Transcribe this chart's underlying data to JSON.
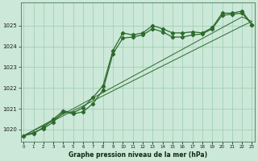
{
  "x": [
    0,
    1,
    2,
    3,
    4,
    5,
    6,
    7,
    8,
    9,
    10,
    11,
    12,
    13,
    14,
    15,
    16,
    17,
    18,
    19,
    20,
    21,
    22,
    23
  ],
  "y_main": [
    1019.7,
    1019.8,
    1020.1,
    1020.5,
    1020.9,
    1020.8,
    1021.05,
    1021.55,
    1022.1,
    1023.8,
    1024.65,
    1024.55,
    1024.65,
    1025.0,
    1024.85,
    1024.65,
    1024.65,
    1024.7,
    1024.65,
    1024.9,
    1025.6,
    1025.6,
    1025.7,
    1025.05
  ],
  "y_line2": [
    1019.7,
    1019.85,
    1020.05,
    1020.35,
    1020.85,
    1020.75,
    1020.85,
    1021.25,
    1021.9,
    1023.65,
    1024.4,
    1024.45,
    1024.55,
    1024.85,
    1024.7,
    1024.45,
    1024.45,
    1024.55,
    1024.6,
    1024.85,
    1025.5,
    1025.55,
    1025.6,
    1025.05
  ],
  "y_linear1": [
    1019.7,
    1019.96,
    1020.22,
    1020.48,
    1020.74,
    1021.0,
    1021.26,
    1021.52,
    1021.78,
    1022.04,
    1022.3,
    1022.56,
    1022.82,
    1023.08,
    1023.34,
    1023.6,
    1023.86,
    1024.12,
    1024.38,
    1024.64,
    1024.9,
    1025.16,
    1025.42,
    1025.2
  ],
  "y_linear2": [
    1019.7,
    1019.94,
    1020.18,
    1020.42,
    1020.66,
    1020.9,
    1021.14,
    1021.38,
    1021.62,
    1021.86,
    1022.1,
    1022.34,
    1022.58,
    1022.82,
    1023.06,
    1023.3,
    1023.54,
    1023.78,
    1024.02,
    1024.26,
    1024.5,
    1024.74,
    1024.98,
    1025.2
  ],
  "line_color": "#2d6a2d",
  "marker_color": "#2d6a2d",
  "bg_color": "#cce8d8",
  "grid_color": "#99ccb0",
  "xlabel": "Graphe pression niveau de la mer (hPa)",
  "ylim": [
    1019.4,
    1026.1
  ],
  "ytick_min": 1020,
  "ytick_max": 1025,
  "ytick_step": 1
}
